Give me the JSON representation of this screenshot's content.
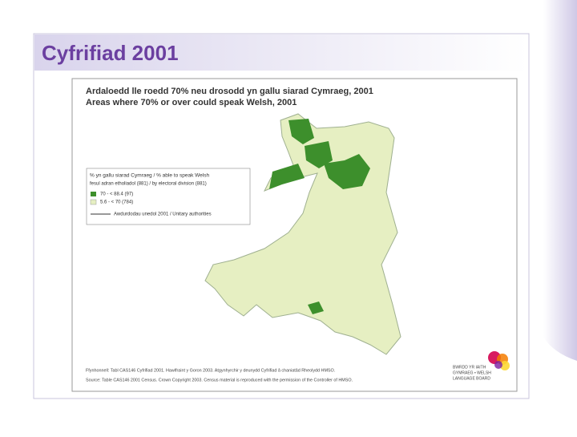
{
  "slide": {
    "title": "Cyfrifiad 2001"
  },
  "map": {
    "title_cy": "Ardaloedd lle roedd 70% neu drosodd yn gallu siarad Cymraeg, 2001",
    "title_en": "Areas where 70% or over could speak Welsh, 2001",
    "legend": {
      "heading": "% yn gallu siarad Cymraeg / % able to speak Welsh",
      "subheading": "fesul adran etholiadol (881) / by electoral division (881)",
      "items": [
        "70 - < 88.4   (97)",
        "5.6 - < 70   (784)",
        "Awdurdodau unedol 2001 / Unitary authorities"
      ]
    },
    "source_cy": "Ffynhonnell: Tabl CAS146 Cyfrifiad 2001. Hawlfraint y Goron 2003. Atgynhyrchir y deunydd Cyfrifiad â chaniatâd Rheolydd HMSO.",
    "source_en": "Source: Table CAS146 2001 Census. Crown Copyright 2003. Census material is reproduced with the permission of the Controller of HMSO.",
    "logo": [
      "BWRDD YR IAITH",
      "GYMRAEG • WELSH",
      "LANGUAGE BOARD"
    ]
  }
}
